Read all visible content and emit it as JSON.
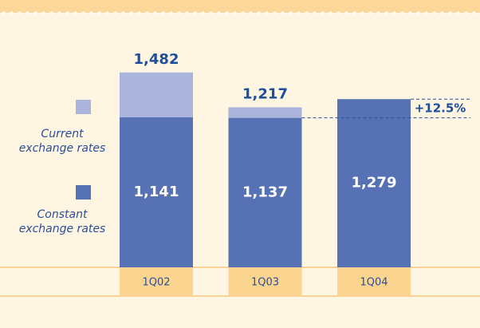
{
  "chart_data": {
    "type": "bar",
    "stacked": true,
    "categories": [
      "1Q02",
      "1Q03",
      "1Q04"
    ],
    "series": [
      {
        "name": "Constant exchange rates",
        "color": "#5672b5",
        "values": [
          1141,
          1137,
          1279
        ],
        "value_labels": [
          "1,141",
          "1,137",
          "1,279"
        ]
      },
      {
        "name": "Current exchange rates",
        "color": "#abb4db",
        "values": [
          341,
          80,
          null
        ]
      }
    ],
    "totals": [
      1482,
      1217,
      null
    ],
    "total_labels": [
      "1,482",
      "1,217",
      null
    ],
    "annotation": "+12.5%"
  }
}
